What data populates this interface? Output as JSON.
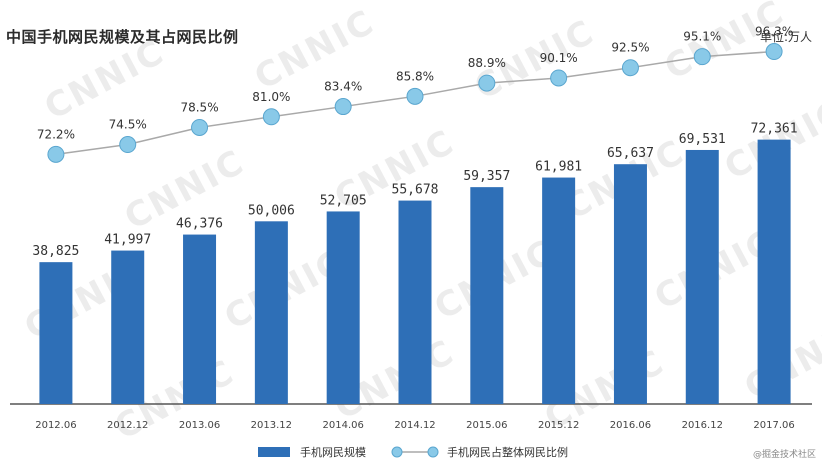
{
  "title": "中国手机网民规模及其占网民比例",
  "unit_label": "单位:万人",
  "watermark_text": "CNNIC",
  "credit": "@掘金技术社区",
  "colors": {
    "bar": "#2e6fb7",
    "line": "#a9a9a9",
    "marker_fill": "#89c9e8",
    "marker_stroke": "#5aa6cf",
    "axis": "#555555"
  },
  "chart_data": {
    "type": "bar",
    "categories": [
      "2012.06",
      "2012.12",
      "2013.06",
      "2013.12",
      "2014.06",
      "2014.12",
      "2015.06",
      "2015.12",
      "2016.06",
      "2016.12",
      "2017.06"
    ],
    "series": [
      {
        "name": "手机网民规模",
        "type": "bar",
        "values": [
          38825,
          41997,
          46376,
          50006,
          52705,
          55678,
          59357,
          61981,
          65637,
          69531,
          72361
        ],
        "labels": [
          "38,825",
          "41,997",
          "46,376",
          "50,006",
          "52,705",
          "55,678",
          "59,357",
          "61,981",
          "65,637",
          "69,531",
          "72,361"
        ]
      },
      {
        "name": "手机网民占整体网民比例",
        "type": "line",
        "values": [
          72.2,
          74.5,
          78.5,
          81.0,
          83.4,
          85.8,
          88.9,
          90.1,
          92.5,
          95.1,
          96.3
        ],
        "labels": [
          "72.2%",
          "74.5%",
          "78.5%",
          "81.0%",
          "83.4%",
          "85.8%",
          "88.9%",
          "90.1%",
          "92.5%",
          "95.1%",
          "96.3%"
        ]
      }
    ],
    "ylim_bar": [
      0,
      101000
    ],
    "ylim_line": [
      69,
      99
    ],
    "grid": false,
    "legend_position": "bottom-center"
  }
}
